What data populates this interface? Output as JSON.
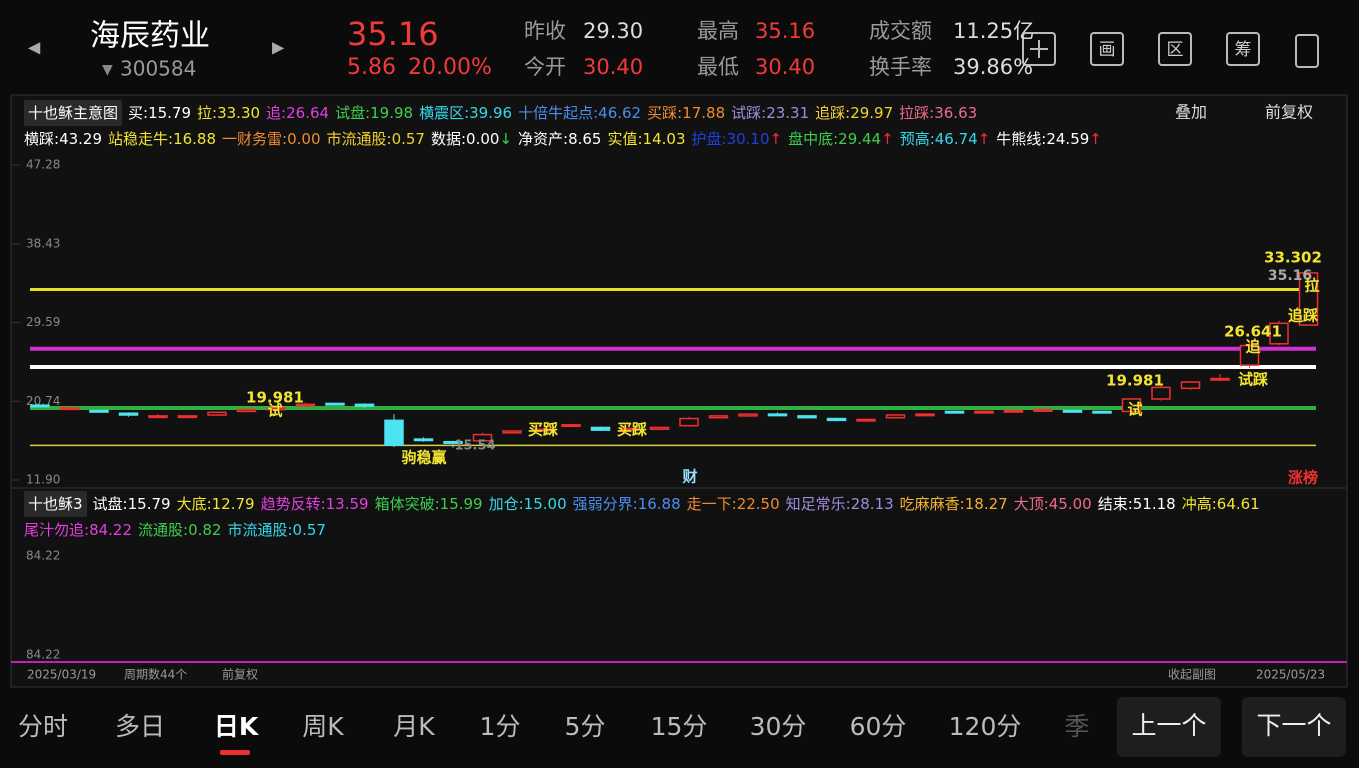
{
  "header": {
    "name": "海辰药业",
    "code": "300584",
    "price": "35.16",
    "change": "5.86",
    "change_pct": "20.00%",
    "stats": [
      {
        "label": "昨收",
        "value": "29.30"
      },
      {
        "label": "今开",
        "value": "30.40"
      },
      {
        "label": "最高",
        "value": "35.16"
      },
      {
        "label": "最低",
        "value": "30.40"
      },
      {
        "label": "成交额",
        "value": "11.25亿"
      },
      {
        "label": "换手率",
        "value": "39.86%"
      }
    ],
    "icons": [
      "画",
      "区",
      "筹"
    ]
  },
  "main_panel": {
    "indicator": "十也稣主意图",
    "overlay": "叠加",
    "adjust": "前复权",
    "row1": [
      {
        "label": "买:",
        "value": "15.79",
        "color": "#ffffff"
      },
      {
        "label": "拉:",
        "value": "33.30",
        "color": "#f2e530"
      },
      {
        "label": "追:",
        "value": "26.64",
        "color": "#e040e0"
      },
      {
        "label": "试盘:",
        "value": "19.98",
        "color": "#3ccf4e"
      },
      {
        "label": "横震区:",
        "value": "39.96",
        "color": "#36d8e8"
      },
      {
        "label": "十倍牛起点:",
        "value": "46.62",
        "color": "#4a8ef0"
      },
      {
        "label": "买踩:",
        "value": "17.88",
        "color": "#f08a30"
      },
      {
        "label": "试踩:",
        "value": "23.31",
        "color": "#a08bdc"
      },
      {
        "label": "追踩:",
        "value": "29.97",
        "color": "#f2d030"
      },
      {
        "label": "拉踩:",
        "value": "36.63",
        "color": "#f06a8a"
      }
    ],
    "row2": [
      {
        "label": "横踩:",
        "value": "43.29",
        "color": "#ffffff"
      },
      {
        "label": "站稳走牛:",
        "value": "16.88",
        "color": "#f2e530"
      },
      {
        "label": "一财务雷:",
        "value": "0.00",
        "color": "#f08a30"
      },
      {
        "label": "市流通股:",
        "value": "0.57",
        "color": "#f2d030"
      },
      {
        "label": "数据:",
        "value": "0.00",
        "color": "#ffffff",
        "arrow": "↓",
        "arrow_color": "#3ccf4e"
      },
      {
        "label": "净资产:",
        "value": "8.65",
        "color": "#ffffff"
      },
      {
        "label": "实值:",
        "value": "14.03",
        "color": "#f2e530"
      },
      {
        "label": "护盘:",
        "value": "30.10",
        "color": "#2040e0",
        "arrow": "↑",
        "arrow_color": "#f03030"
      },
      {
        "label": "盘中底:",
        "value": "29.44",
        "color": "#3ccf4e",
        "arrow": "↑",
        "arrow_color": "#f03030"
      },
      {
        "label": "预高:",
        "value": "46.74",
        "color": "#36d8e8",
        "arrow": "↑",
        "arrow_color": "#f03030"
      },
      {
        "label": "牛熊线:",
        "value": "24.59",
        "color": "#ffffff",
        "arrow": "↑",
        "arrow_color": "#f03030"
      }
    ],
    "annotations": [
      "33.302",
      "35.16",
      "拉",
      "追踩",
      "26.641",
      "追",
      "19.981",
      "试踩",
      "试",
      "19.981",
      "试",
      "买踩",
      "买踩",
      "驹稳赢",
      "15.54",
      "财",
      "涨榜"
    ]
  },
  "chart_data": {
    "type": "candlestick",
    "ylim": [
      11.9,
      47.28
    ],
    "yticks": [
      47.28,
      38.43,
      29.59,
      20.74,
      {
        "value": 11.9,
        "label": "11.90"
      }
    ],
    "up_color": "#f03030",
    "down_color": "#4de3f0",
    "open": [
      20.3,
      20.0,
      19.7,
      19.4,
      19.0,
      19.0,
      19.2,
      19.6,
      19.8,
      20.3,
      20.5,
      20.4,
      18.6,
      16.5,
      16.2,
      16.3,
      17.2,
      17.5,
      18.0,
      17.8,
      17.6,
      17.6,
      18.0,
      18.9,
      19.1,
      19.3,
      19.1,
      18.8,
      18.6,
      18.9,
      19.2,
      19.6,
      19.5,
      19.7,
      19.7,
      19.7,
      19.6,
      19.6,
      21.0,
      22.2,
      23.3,
      24.8,
      27.2,
      29.3
    ],
    "close": [
      20.2,
      20.0,
      19.6,
      19.2,
      19.1,
      19.1,
      19.5,
      19.8,
      19.98,
      20.4,
      20.4,
      20.2,
      15.8,
      16.4,
      16.1,
      17.0,
      17.4,
      17.6,
      18.1,
      17.5,
      17.7,
      17.8,
      18.8,
      19.1,
      19.3,
      19.2,
      18.9,
      18.6,
      18.7,
      19.2,
      19.3,
      19.5,
      19.6,
      19.7,
      19.8,
      19.6,
      19.5,
      21.0,
      22.3,
      22.9,
      23.3,
      27.0,
      29.5,
      35.16
    ],
    "high": [
      20.4,
      20.1,
      19.8,
      19.5,
      19.3,
      19.2,
      19.6,
      19.9,
      20.1,
      20.6,
      20.6,
      20.5,
      19.3,
      16.7,
      16.3,
      17.2,
      17.5,
      17.7,
      18.2,
      17.9,
      17.8,
      17.9,
      19.0,
      19.2,
      19.4,
      19.5,
      19.2,
      18.9,
      18.8,
      19.3,
      19.4,
      19.7,
      19.8,
      19.8,
      19.9,
      19.8,
      19.7,
      21.1,
      22.5,
      23.0,
      23.8,
      27.3,
      29.8,
      35.16
    ],
    "low": [
      20.1,
      19.9,
      19.5,
      19.0,
      18.9,
      18.9,
      19.1,
      19.5,
      19.7,
      20.1,
      20.3,
      20.0,
      15.6,
      16.2,
      15.54,
      16.2,
      17.1,
      17.4,
      17.9,
      17.4,
      17.5,
      17.5,
      17.9,
      18.8,
      19.0,
      19.1,
      18.8,
      18.5,
      18.5,
      18.8,
      19.1,
      19.4,
      19.4,
      19.6,
      19.6,
      19.5,
      19.4,
      19.5,
      20.8,
      22.0,
      23.0,
      24.5,
      27.0,
      29.3
    ]
  },
  "sub_panel": {
    "indicator": "十也稣3",
    "items": [
      {
        "label": "试盘:",
        "value": "15.79",
        "color": "#ffffff"
      },
      {
        "label": "大底:",
        "value": "12.79",
        "color": "#f2e530"
      },
      {
        "label": "趋势反转:",
        "value": "13.59",
        "color": "#e040e0"
      },
      {
        "label": "箱体突破:",
        "value": "15.99",
        "color": "#3ccf4e"
      },
      {
        "label": "加仓:",
        "value": "15.00",
        "color": "#36d8e8"
      },
      {
        "label": "强弱分界:",
        "value": "16.88",
        "color": "#4a8ef0"
      },
      {
        "label": "走一下:",
        "value": "22.50",
        "color": "#f08a30"
      },
      {
        "label": "知足常乐:",
        "value": "28.13",
        "color": "#a08bdc"
      },
      {
        "label": "吃麻麻香:",
        "value": "18.27",
        "color": "#f2b030"
      },
      {
        "label": "大顶:",
        "value": "45.00",
        "color": "#f06a8a"
      },
      {
        "label": "结束:",
        "value": "51.18",
        "color": "#ffffff"
      },
      {
        "label": "冲高:",
        "value": "64.61",
        "color": "#f2e530"
      },
      {
        "label": "尾汁勿追:",
        "value": "84.22",
        "color": "#e040e0"
      },
      {
        "label": "流通股:",
        "value": "0.82",
        "color": "#3ccf4e"
      },
      {
        "label": "市流通股:",
        "value": "0.57",
        "color": "#36d8e8"
      }
    ],
    "ticks": [
      "84.22",
      "84.22"
    ]
  },
  "footer": {
    "start": "2025/03/19",
    "periods": "周期数44个",
    "adjust": "前复权",
    "collapse": "收起副图",
    "end": "2025/05/23"
  },
  "tabs": [
    "分时",
    "多日",
    "日K",
    "周K",
    "月K",
    "1分",
    "5分",
    "15分",
    "30分",
    "60分",
    "120分",
    "季"
  ],
  "buttons": [
    "上一个",
    "下一个"
  ]
}
